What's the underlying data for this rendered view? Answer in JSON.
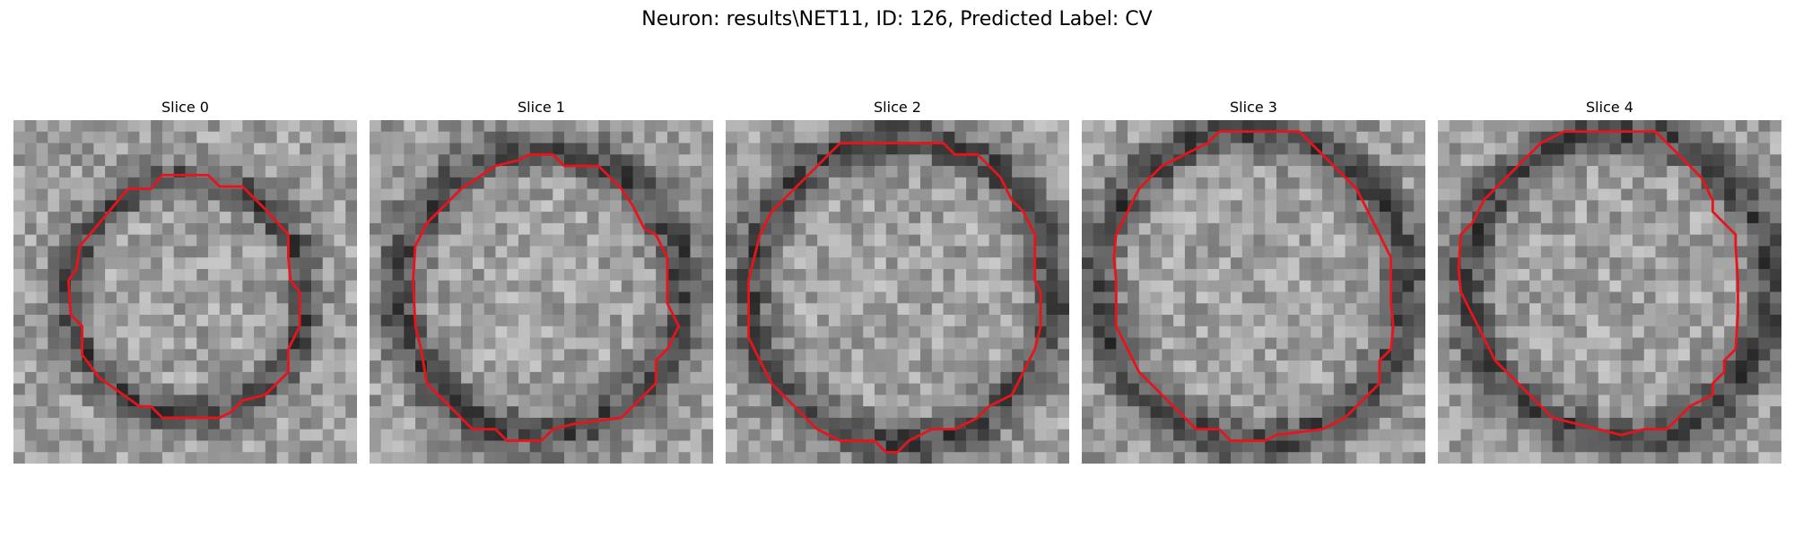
{
  "figure": {
    "title": "Neuron: results\\NET11, ID: 126, Predicted Label: CV"
  },
  "panels": [
    {
      "title": "Slice 0"
    },
    {
      "title": "Slice 1"
    },
    {
      "title": "Slice 2"
    },
    {
      "title": "Slice 3"
    },
    {
      "title": "Slice 4"
    }
  ],
  "colors": {
    "contour": "#e8141c",
    "background": "#ffffff"
  }
}
